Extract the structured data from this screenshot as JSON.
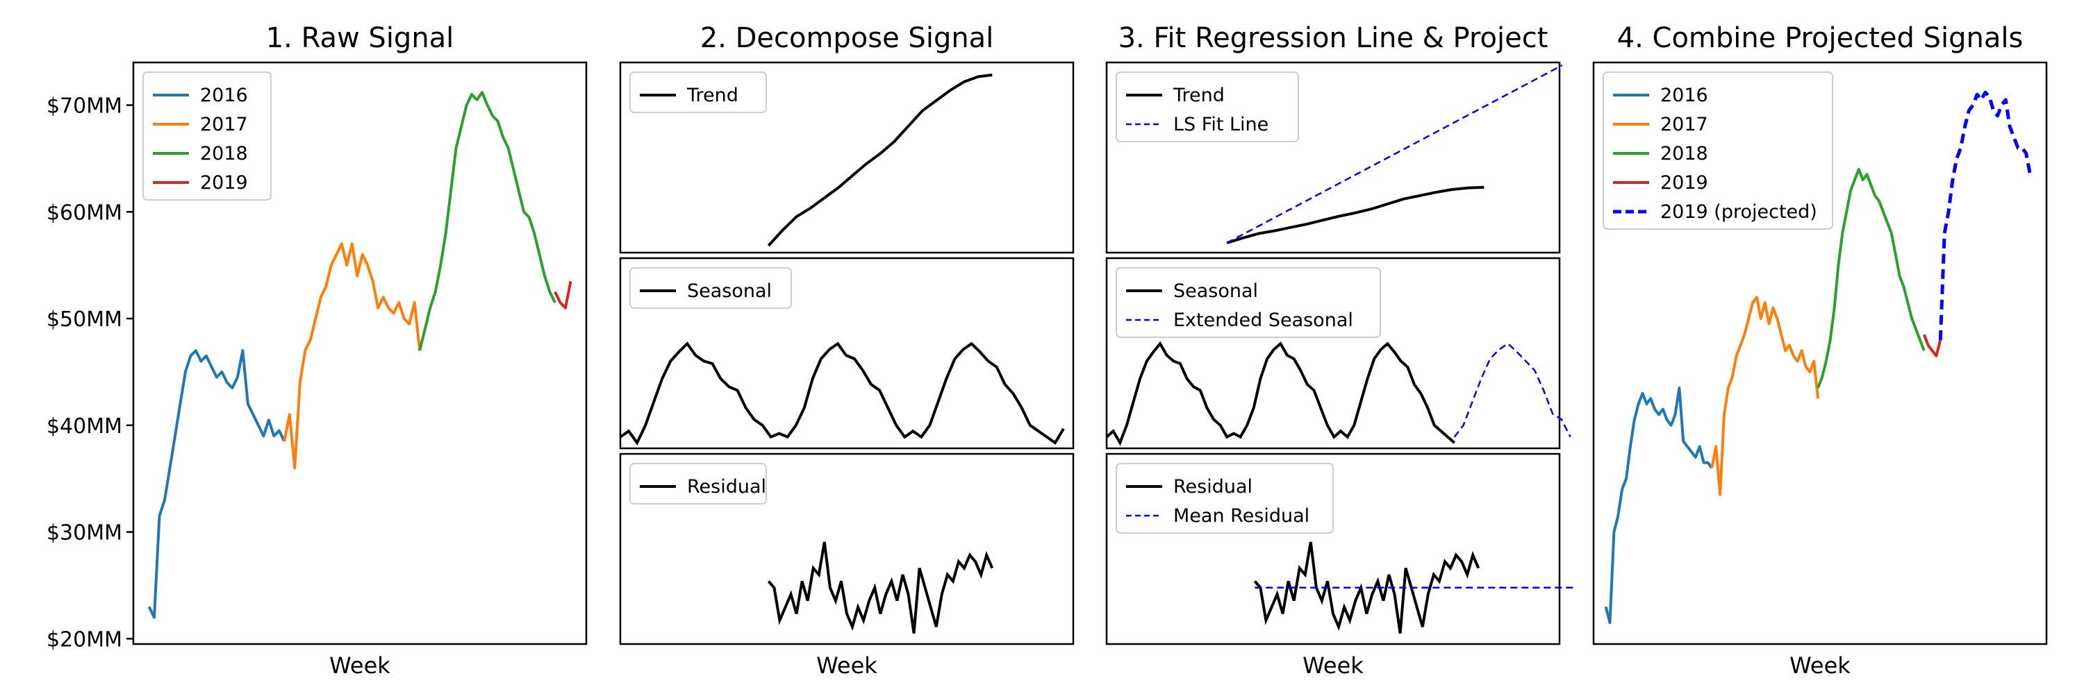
{
  "colors": {
    "2016": "#1f77b4",
    "2017": "#ff7f0e",
    "2018": "#2ca02c",
    "2019": "#d62728",
    "component": "#000000",
    "projection": "#0000ff"
  },
  "x_tick_labels": [],
  "chart_data": [
    {
      "type": "line",
      "title": "1. Raw Signal",
      "xlabel": "Week",
      "ylabel": "",
      "ylim": [
        19.5,
        74
      ],
      "yticks": [
        20,
        30,
        40,
        50,
        60,
        70
      ],
      "ytick_labels": [
        "$20MM",
        "$30MM",
        "$40MM",
        "$50MM",
        "$60MM",
        "$70MM"
      ],
      "legend": "top-left",
      "grid": false,
      "series": [
        {
          "name": "2016",
          "x": [
            0,
            2,
            4,
            6,
            8,
            10,
            12,
            14,
            16,
            18,
            20,
            22,
            24,
            26,
            28,
            30,
            32,
            34,
            36,
            38,
            40,
            42,
            44,
            46,
            48,
            50,
            52
          ],
          "values": [
            23,
            22,
            31.5,
            33,
            36,
            39,
            42,
            45,
            46.5,
            47,
            46,
            46.5,
            45.5,
            44.5,
            45,
            44,
            43.5,
            44.5,
            47,
            42,
            41,
            40,
            39,
            40.5,
            39,
            39.5,
            38.5
          ]
        },
        {
          "name": "2017",
          "x": [
            52,
            54,
            56,
            58,
            60,
            62,
            64,
            66,
            68,
            70,
            72,
            74,
            76,
            78,
            80,
            82,
            84,
            86,
            88,
            90,
            92,
            94,
            96,
            98,
            100,
            102,
            104
          ],
          "values": [
            38.5,
            41,
            36,
            44,
            47,
            48,
            50,
            52,
            53,
            55,
            56,
            57,
            55,
            57,
            54,
            56,
            55,
            53.5,
            51,
            52,
            51,
            50.5,
            51.5,
            50,
            49.5,
            51.5,
            47
          ]
        },
        {
          "name": "2018",
          "x": [
            104,
            106,
            108,
            110,
            112,
            114,
            116,
            118,
            120,
            122,
            124,
            126,
            128,
            130,
            132,
            134,
            136,
            138,
            140,
            142,
            144,
            146,
            148,
            150,
            152,
            154,
            156
          ],
          "values": [
            47,
            49,
            51,
            52.5,
            55,
            58,
            62,
            66,
            68,
            70,
            71,
            70.5,
            71.2,
            70,
            69,
            68.5,
            67,
            66,
            64,
            62,
            60,
            59.5,
            58,
            56,
            54,
            52.5,
            51.5
          ]
        },
        {
          "name": "2019",
          "x": [
            156,
            158,
            160,
            162
          ],
          "values": [
            52.5,
            51.5,
            51,
            53.5
          ]
        }
      ]
    },
    {
      "type": "line",
      "title": "2. Decompose Signal",
      "xlabel": "Week",
      "subplots": [
        {
          "name": "Trend",
          "x": [
            0,
            10,
            20,
            30,
            40,
            50,
            60,
            70,
            80,
            90,
            100,
            110,
            120,
            130,
            140,
            150,
            160
          ],
          "values": [
            0.0,
            0.09,
            0.17,
            0.22,
            0.28,
            0.34,
            0.41,
            0.48,
            0.54,
            0.61,
            0.7,
            0.79,
            0.85,
            0.91,
            0.96,
            0.99,
            1.0
          ]
        },
        {
          "name": "Seasonal",
          "x": [
            0,
            3,
            6,
            9,
            12,
            15,
            18,
            21,
            24,
            27,
            30,
            33,
            36,
            39,
            42,
            45,
            48,
            51,
            54,
            57,
            60,
            63,
            66,
            69,
            72,
            75,
            78,
            81,
            84,
            87,
            90,
            93,
            96,
            99,
            102,
            105,
            108,
            111,
            114,
            117,
            120,
            123,
            126,
            129,
            132,
            135,
            138,
            141,
            144,
            147,
            150,
            153,
            156,
            159
          ],
          "values": [
            0.05,
            0.1,
            0.0,
            0.15,
            0.35,
            0.55,
            0.7,
            0.78,
            0.85,
            0.75,
            0.7,
            0.68,
            0.55,
            0.48,
            0.45,
            0.3,
            0.2,
            0.15,
            0.05,
            0.08,
            0.05,
            0.15,
            0.3,
            0.55,
            0.72,
            0.8,
            0.85,
            0.75,
            0.72,
            0.62,
            0.5,
            0.45,
            0.3,
            0.15,
            0.05,
            0.1,
            0.05,
            0.15,
            0.35,
            0.55,
            0.72,
            0.8,
            0.85,
            0.78,
            0.7,
            0.65,
            0.5,
            0.42,
            0.3,
            0.15,
            0.1,
            0.05,
            0.0,
            0.12
          ]
        },
        {
          "name": "Residual",
          "x": [
            0,
            4,
            8,
            12,
            16,
            20,
            24,
            28,
            32,
            36,
            40,
            44,
            48,
            52,
            56,
            60,
            64,
            68,
            72,
            76,
            80,
            84,
            88,
            92,
            96,
            100,
            104,
            108,
            112,
            116,
            120,
            124,
            128,
            132,
            136,
            140,
            144,
            148,
            152,
            156,
            160
          ],
          "values": [
            0.45,
            0.4,
            0.15,
            0.25,
            0.35,
            0.2,
            0.45,
            0.3,
            0.55,
            0.5,
            0.75,
            0.4,
            0.3,
            0.45,
            0.2,
            0.1,
            0.25,
            0.15,
            0.3,
            0.4,
            0.2,
            0.35,
            0.45,
            0.3,
            0.5,
            0.35,
            0.05,
            0.55,
            0.4,
            0.25,
            0.1,
            0.35,
            0.5,
            0.45,
            0.6,
            0.55,
            0.65,
            0.6,
            0.5,
            0.65,
            0.55
          ]
        }
      ]
    },
    {
      "type": "line",
      "title": "3. Fit Regression Line & Project",
      "xlabel": "Week",
      "subplots": [
        {
          "name": "Trend",
          "ls_fit_name": "LS Fit Line",
          "x": [
            0,
            10,
            20,
            30,
            40,
            50,
            60,
            70,
            80,
            90,
            100,
            110,
            120,
            130,
            140,
            150,
            160
          ],
          "values": [
            0.0,
            0.09,
            0.17,
            0.22,
            0.28,
            0.34,
            0.41,
            0.48,
            0.54,
            0.61,
            0.7,
            0.79,
            0.85,
            0.91,
            0.96,
            0.99,
            1.0
          ],
          "ls_fit_x": [
            0,
            320
          ],
          "ls_fit_values": [
            0.0,
            2.3
          ]
        },
        {
          "name": "Seasonal",
          "extended_name": "Extended Seasonal",
          "x": [
            0,
            3,
            6,
            9,
            12,
            15,
            18,
            21,
            24,
            27,
            30,
            33,
            36,
            39,
            42,
            45,
            48,
            51,
            54,
            57,
            60,
            63,
            66,
            69,
            72,
            75,
            78,
            81,
            84,
            87,
            90,
            93,
            96,
            99,
            102,
            105,
            108,
            111,
            114,
            117,
            120,
            123,
            126,
            129,
            132,
            135,
            138,
            141,
            144,
            147,
            150,
            153,
            156
          ],
          "values": [
            0.05,
            0.1,
            0.0,
            0.15,
            0.35,
            0.55,
            0.7,
            0.78,
            0.85,
            0.75,
            0.7,
            0.68,
            0.55,
            0.48,
            0.45,
            0.3,
            0.2,
            0.15,
            0.05,
            0.08,
            0.05,
            0.15,
            0.3,
            0.55,
            0.72,
            0.8,
            0.85,
            0.75,
            0.72,
            0.62,
            0.5,
            0.45,
            0.3,
            0.15,
            0.05,
            0.1,
            0.05,
            0.15,
            0.35,
            0.55,
            0.72,
            0.8,
            0.85,
            0.78,
            0.7,
            0.65,
            0.5,
            0.42,
            0.3,
            0.15,
            0.1,
            0.05,
            0.0
          ],
          "extended_x": [
            156,
            160,
            164,
            168,
            172,
            176,
            180,
            184,
            188,
            192,
            196,
            200,
            204,
            208
          ],
          "extended_values": [
            0.05,
            0.15,
            0.35,
            0.55,
            0.72,
            0.8,
            0.85,
            0.78,
            0.7,
            0.62,
            0.45,
            0.25,
            0.2,
            0.05
          ]
        },
        {
          "name": "Residual",
          "mean_name": "Mean Residual",
          "x": [
            0,
            4,
            8,
            12,
            16,
            20,
            24,
            28,
            32,
            36,
            40,
            44,
            48,
            52,
            56,
            60,
            64,
            68,
            72,
            76,
            80,
            84,
            88,
            92,
            96,
            100,
            104,
            108,
            112,
            116,
            120,
            124,
            128,
            132,
            136,
            140,
            144,
            148,
            152,
            156,
            160
          ],
          "values": [
            0.45,
            0.4,
            0.15,
            0.25,
            0.35,
            0.2,
            0.45,
            0.3,
            0.55,
            0.5,
            0.75,
            0.4,
            0.3,
            0.45,
            0.2,
            0.1,
            0.25,
            0.15,
            0.3,
            0.4,
            0.2,
            0.35,
            0.45,
            0.3,
            0.5,
            0.35,
            0.05,
            0.55,
            0.4,
            0.25,
            0.1,
            0.35,
            0.5,
            0.45,
            0.6,
            0.55,
            0.65,
            0.6,
            0.5,
            0.65,
            0.55
          ],
          "mean_x": [
            0,
            330
          ],
          "mean_values": [
            0.4,
            0.4
          ]
        }
      ]
    },
    {
      "type": "line",
      "title": "4. Combine Projected Signals",
      "xlabel": "Week",
      "ylim": [
        19.5,
        74
      ],
      "legend": "top-left",
      "series": [
        {
          "name": "2016",
          "x": [
            0,
            2,
            4,
            6,
            8,
            10,
            12,
            14,
            16,
            18,
            20,
            22,
            24,
            26,
            28,
            30,
            32,
            34,
            36,
            38,
            40,
            42,
            44,
            46,
            48,
            50,
            52
          ],
          "values": [
            23,
            21.5,
            30,
            31.5,
            34,
            35,
            38,
            40.5,
            42,
            43,
            42,
            42.5,
            41.5,
            41,
            41.5,
            40.5,
            40,
            41,
            43.5,
            38.5,
            38,
            37.5,
            37,
            38,
            36.5,
            36.5,
            36
          ]
        },
        {
          "name": "2017",
          "x": [
            52,
            54,
            56,
            58,
            60,
            62,
            64,
            66,
            68,
            70,
            72,
            74,
            76,
            78,
            80,
            82,
            84,
            86,
            88,
            90,
            92,
            94,
            96,
            98,
            100,
            102,
            104
          ],
          "values": [
            36,
            38,
            33.5,
            41,
            43.5,
            44.5,
            46.5,
            47.5,
            48.5,
            50,
            51.5,
            52,
            50,
            51.5,
            49.5,
            51,
            50,
            48.5,
            47,
            47.5,
            46.5,
            46,
            47,
            45.5,
            45,
            46,
            42.5
          ]
        },
        {
          "name": "2018",
          "x": [
            104,
            106,
            108,
            110,
            112,
            114,
            116,
            118,
            120,
            122,
            124,
            126,
            128,
            130,
            132,
            134,
            136,
            138,
            140,
            142,
            144,
            146,
            148,
            150,
            152,
            154,
            156
          ],
          "values": [
            43.5,
            44.5,
            46,
            48,
            51,
            55,
            58,
            60,
            62,
            63,
            64,
            63,
            63.5,
            62.5,
            61.5,
            61,
            60,
            59,
            58,
            56,
            54,
            53,
            51.5,
            50,
            49,
            48,
            47
          ]
        },
        {
          "name": "2019",
          "x": [
            156,
            158,
            160,
            162,
            164
          ],
          "values": [
            48.5,
            47.5,
            47,
            46.5,
            48
          ]
        },
        {
          "name": "2019 (projected)",
          "dashed": true,
          "x": [
            164,
            166,
            168,
            170,
            172,
            174,
            176,
            178,
            180,
            182,
            184,
            186,
            188,
            190,
            192,
            194,
            196,
            198,
            200,
            202,
            204,
            206,
            208
          ],
          "values": [
            48,
            58,
            60,
            63,
            65,
            66,
            68,
            69.5,
            70,
            71,
            70.5,
            71.2,
            70.8,
            69.5,
            69,
            70,
            70.5,
            68,
            67,
            66,
            66,
            65.5,
            63.5
          ]
        }
      ]
    }
  ]
}
